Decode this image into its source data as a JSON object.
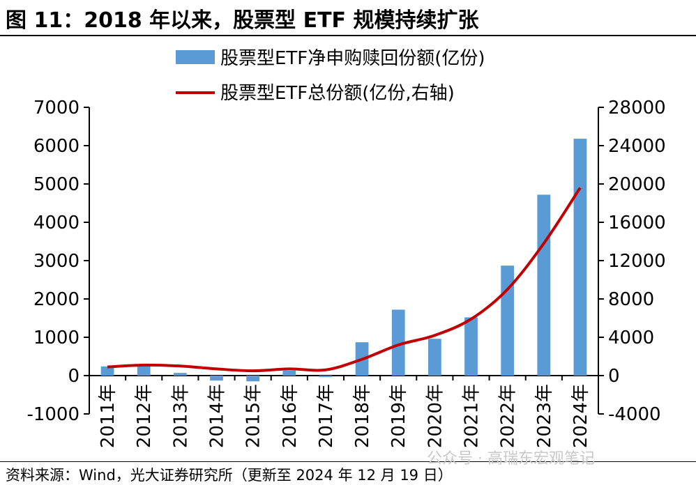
{
  "title": "图 11：2018 年以来，股票型 ETF 规模持续扩张",
  "source": "资料来源：Wind，光大证券研究所（更新至 2024 年 12 月 19 日）",
  "watermark": "公众号 · 高瑞东宏观笔记",
  "colors": {
    "bar": "#5b9bd5",
    "line": "#c00000",
    "axis": "#000000"
  },
  "chart_data": {
    "type": "bar",
    "categories": [
      "2011年",
      "2012年",
      "2013年",
      "2014年",
      "2015年",
      "2016年",
      "2017年",
      "2018年",
      "2019年",
      "2020年",
      "2021年",
      "2022年",
      "2023年",
      "2024年"
    ],
    "series": [
      {
        "name": "股票型ETF净申购赎回份额(亿份)",
        "type": "bar",
        "axis": "left",
        "values": [
          240,
          300,
          70,
          -130,
          -150,
          130,
          -40,
          870,
          1720,
          960,
          1520,
          2870,
          4720,
          6180
        ]
      },
      {
        "name": "股票型ETF总份额(亿份,右轴)",
        "type": "line",
        "axis": "right",
        "values": [
          900,
          1100,
          1000,
          700,
          500,
          700,
          600,
          1700,
          3200,
          4200,
          5900,
          9000,
          13800,
          19600
        ]
      }
    ],
    "y_left": {
      "ylim": [
        -1000,
        7000
      ],
      "ticks": [
        "-1000",
        "0",
        "1000",
        "2000",
        "3000",
        "4000",
        "5000",
        "6000",
        "7000"
      ]
    },
    "y_right": {
      "ylim": [
        -4000,
        28000
      ],
      "ticks": [
        "-4000",
        "0",
        "4000",
        "8000",
        "12000",
        "16000",
        "20000",
        "24000",
        "28000"
      ]
    },
    "grid": false,
    "legend_position": "top-center"
  }
}
